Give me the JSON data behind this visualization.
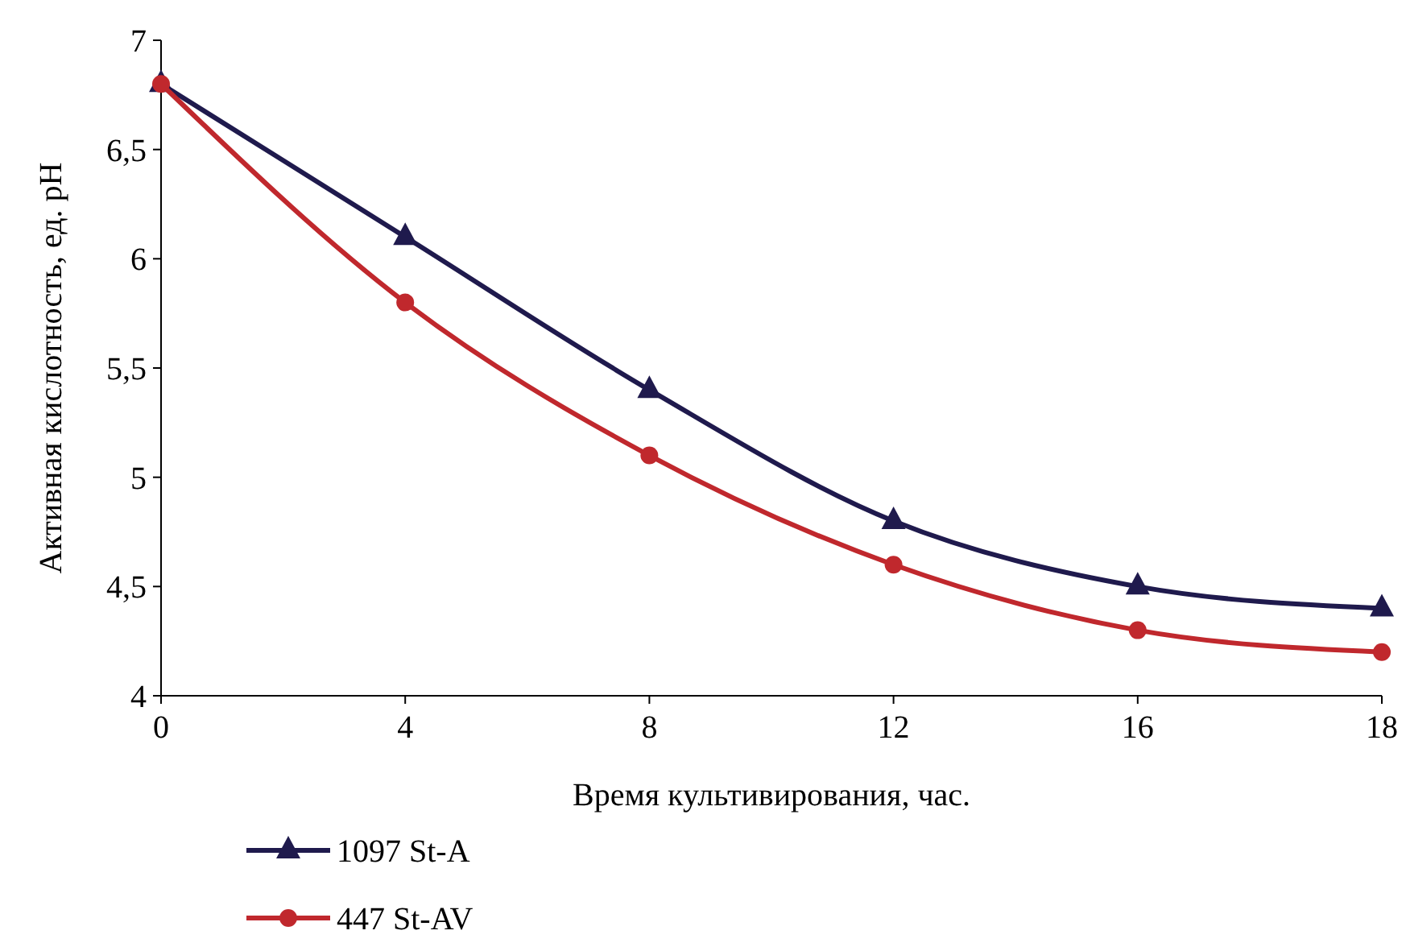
{
  "chart_data": {
    "type": "line",
    "xlabel": "Время культивирования, час.",
    "ylabel": "Активная кислотность, ед. pH",
    "categories": [
      "0",
      "4",
      "8",
      "12",
      "16",
      "18"
    ],
    "series": [
      {
        "name": "1097 St-A",
        "color": "#1f1a4d",
        "marker": "triangle",
        "values": [
          6.8,
          6.1,
          5.4,
          4.8,
          4.5,
          4.4
        ]
      },
      {
        "name": "447 St-AV",
        "color": "#c0282d",
        "marker": "circle",
        "values": [
          6.8,
          5.8,
          5.1,
          4.6,
          4.3,
          4.2
        ]
      }
    ],
    "ylim": [
      4,
      7
    ],
    "yticks": [
      4,
      {
        "value": 4.5,
        "label": "4,5"
      },
      5,
      {
        "value": 5.5,
        "label": "5,5"
      },
      6,
      {
        "value": 6.5,
        "label": "6,5"
      },
      7
    ],
    "grid": false,
    "legend": "bottom",
    "line_style": "solid"
  }
}
